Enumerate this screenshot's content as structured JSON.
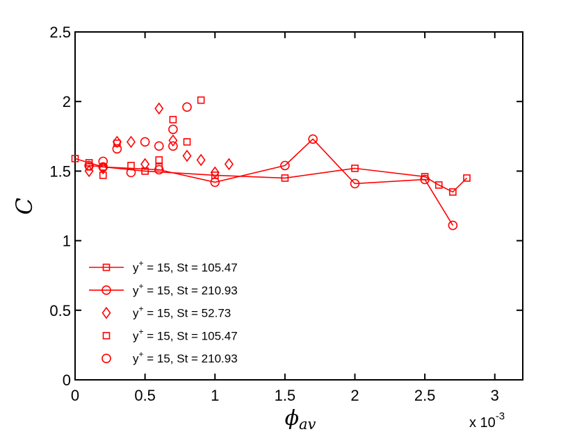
{
  "chart_data": {
    "type": "scatter",
    "title": "",
    "xlabel": "ϕ",
    "xlabel_sub": "av",
    "ylabel": "C",
    "x_multiplier": "x 10",
    "x_multiplier_exp": "-3",
    "xlim": [
      0,
      3.2
    ],
    "ylim": [
      0,
      2.5
    ],
    "xticks": [
      0,
      0.5,
      1,
      1.5,
      2,
      2.5,
      3
    ],
    "xtick_labels": [
      "0",
      "0.5",
      "1",
      "1.5",
      "2",
      "2.5",
      "3"
    ],
    "yticks": [
      0,
      0.5,
      1,
      1.5,
      2,
      2.5
    ],
    "ytick_labels": [
      "0",
      "0.5",
      "1",
      "1.5",
      "2",
      "2.5"
    ],
    "grid": false,
    "legend_position": "bottom-left",
    "color": "#ff0000",
    "series": [
      {
        "legend_prefix": "y",
        "legend_sup": "+",
        "legend_suffix": " = 15, St = 105.47",
        "marker": "square",
        "line": true,
        "x": [
          0,
          0.1,
          0.2,
          0.5,
          1.0,
          1.5,
          2.0,
          2.5,
          2.6,
          2.7,
          2.8
        ],
        "y": [
          1.59,
          1.56,
          1.53,
          1.5,
          1.47,
          1.45,
          1.52,
          1.46,
          1.4,
          1.35,
          1.45
        ]
      },
      {
        "legend_prefix": "y",
        "legend_sup": "+",
        "legend_suffix": " = 15, St = 210.93",
        "marker": "circle",
        "line": true,
        "x": [
          0.1,
          0.2,
          0.6,
          1.0,
          1.5,
          1.7,
          2.0,
          2.5,
          2.7
        ],
        "y": [
          1.54,
          1.53,
          1.51,
          1.42,
          1.54,
          1.73,
          1.41,
          1.44,
          1.11
        ]
      },
      {
        "legend_prefix": "y",
        "legend_sup": "+",
        "legend_suffix": " = 15, St = 52.73",
        "marker": "diamond",
        "line": false,
        "x": [
          0.1,
          0.2,
          0.3,
          0.4,
          0.5,
          0.6,
          0.7,
          0.8,
          0.9,
          1.0,
          1.1
        ],
        "y": [
          1.5,
          1.52,
          1.71,
          1.71,
          1.55,
          1.95,
          1.72,
          1.61,
          1.58,
          1.49,
          1.55
        ]
      },
      {
        "legend_prefix": "y",
        "legend_sup": "+",
        "legend_suffix": " = 15, St = 105.47",
        "marker": "square",
        "line": false,
        "x": [
          0.1,
          0.2,
          0.3,
          0.4,
          0.6,
          0.6,
          0.7,
          0.8,
          0.9
        ],
        "y": [
          1.53,
          1.47,
          1.7,
          1.54,
          1.53,
          1.58,
          1.87,
          1.71,
          2.01
        ]
      },
      {
        "legend_prefix": "y",
        "legend_sup": "+",
        "legend_suffix": " = 15, St = 210.93",
        "marker": "circle",
        "line": false,
        "x": [
          0.2,
          0.3,
          0.4,
          0.5,
          0.6,
          0.7,
          0.7,
          0.8
        ],
        "y": [
          1.57,
          1.66,
          1.49,
          1.71,
          1.68,
          1.8,
          1.68,
          1.96
        ]
      }
    ]
  }
}
